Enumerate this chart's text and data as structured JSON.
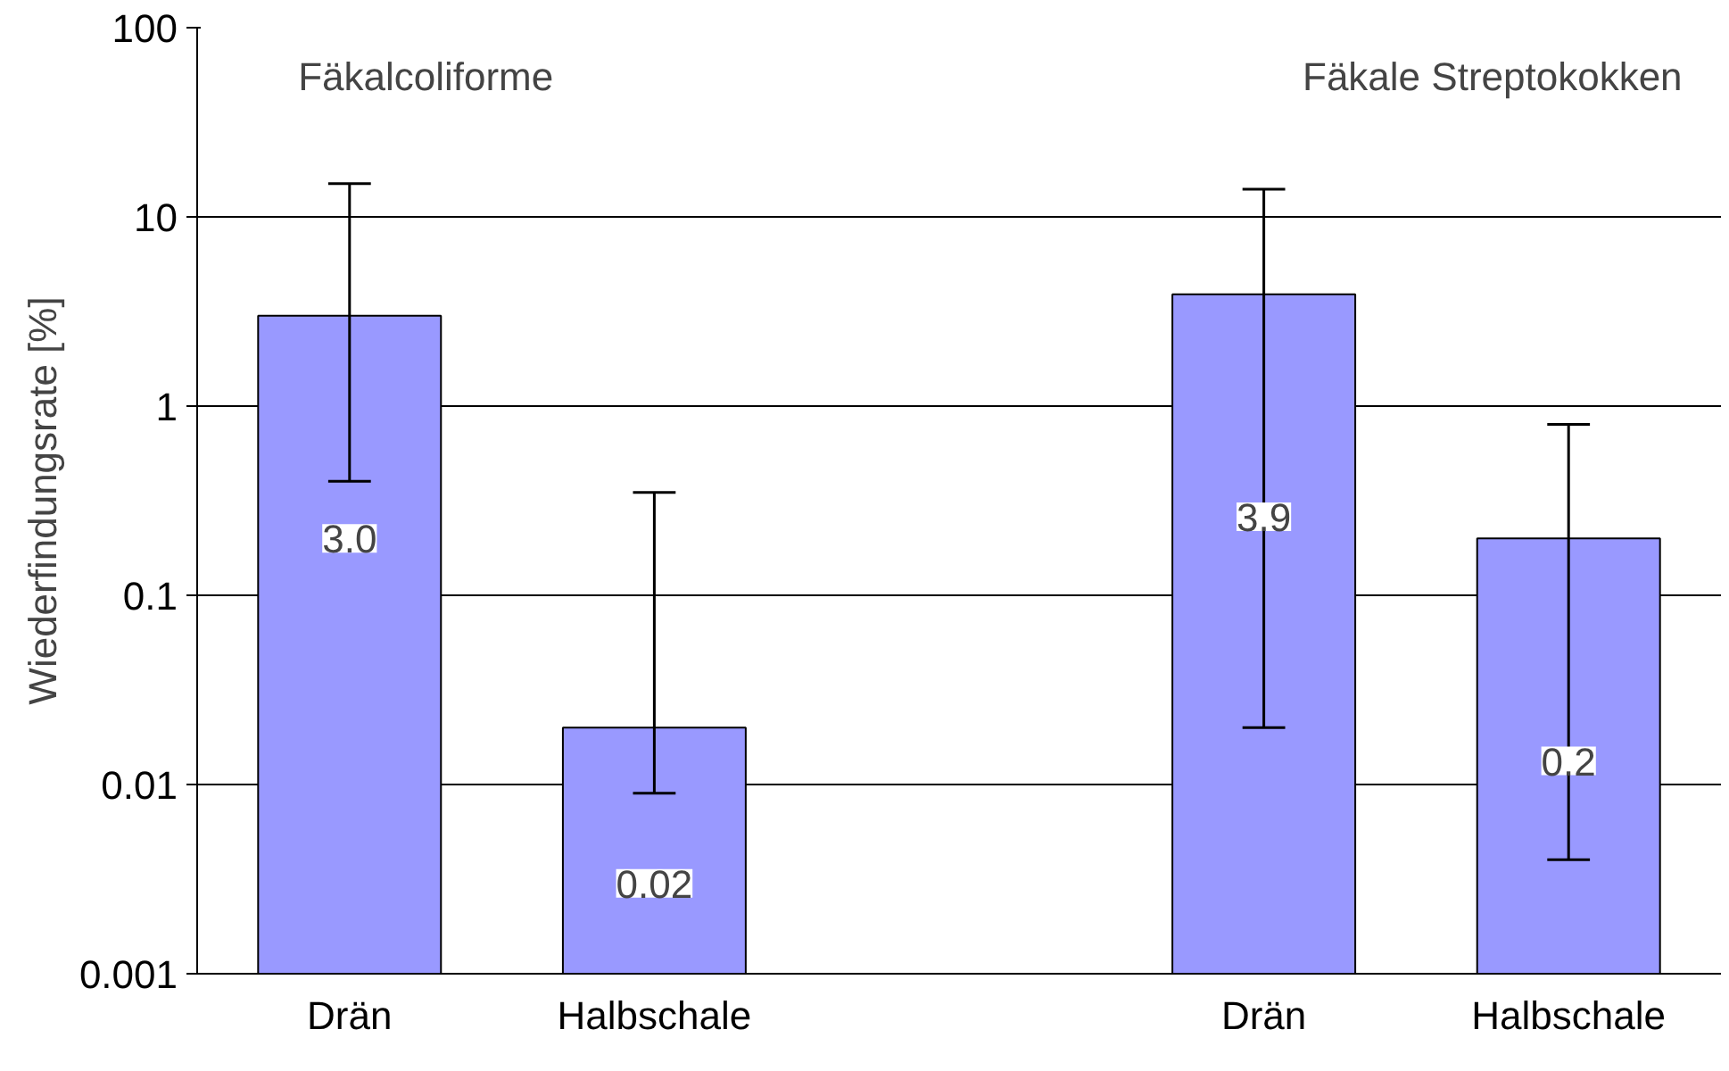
{
  "chart_data": {
    "type": "bar",
    "ylabel": "Wiederfindungsrate [%]",
    "categories": [
      "Drän",
      "Halbschale",
      null,
      "Drän",
      "Halbschale"
    ],
    "values": [
      3.0,
      0.02,
      null,
      3.9,
      0.2
    ],
    "color": "#9999ff",
    "errors": [
      [
        0.4,
        15
      ],
      [
        0.009,
        0.35
      ],
      null,
      [
        0.02,
        14
      ],
      [
        0.004,
        0.8
      ]
    ],
    "value_labels": [
      "3.0",
      "0.02",
      null,
      "3.9",
      "0.2"
    ],
    "annotations": [
      "Fäkalcoliforme",
      "Fäkale Streptokokken"
    ],
    "log": true,
    "ylim": [
      0.001,
      100
    ],
    "yticks": [
      0.001,
      0.01,
      0.1,
      1,
      10,
      100
    ],
    "grid": "y"
  }
}
